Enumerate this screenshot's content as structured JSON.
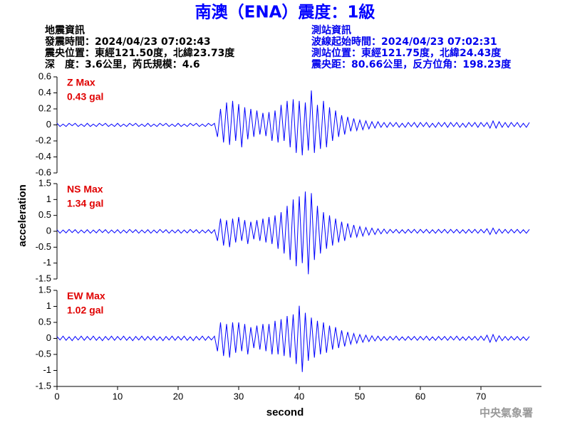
{
  "header": {
    "title": "南澳（ENA）震度：1級",
    "left": [
      "地震資訊",
      "發震時間：2024/04/23 07:02:43",
      "震央位置：東經121.50度，北緯23.73度",
      "深　度：3.6公里，芮氏規模：4.6"
    ],
    "right": [
      "測站資訊",
      "波線起始時間：2024/04/23 07:02:31",
      "測站位置：東經121.75度，北緯24.43度",
      "震央距：80.66公里，反方位角：198.23度"
    ]
  },
  "footer": "中央氣象署",
  "chart_data": {
    "type": "line",
    "xlabel": "second",
    "ylabel": "acceleration",
    "xlim": [
      0,
      80
    ],
    "xticks": [
      0,
      10,
      20,
      30,
      40,
      50,
      60,
      70
    ],
    "x": [
      0,
      0.5,
      1,
      1.5,
      2,
      2.5,
      3,
      3.5,
      4,
      4.5,
      5,
      5.5,
      6,
      6.5,
      7,
      7.5,
      8,
      8.5,
      9,
      9.5,
      10,
      10.5,
      11,
      11.5,
      12,
      12.5,
      13,
      13.5,
      14,
      14.5,
      15,
      15.5,
      16,
      16.5,
      17,
      17.5,
      18,
      18.5,
      19,
      19.5,
      20,
      20.5,
      21,
      21.5,
      22,
      22.5,
      23,
      23.5,
      24,
      24.5,
      25,
      25.5,
      26,
      26.5,
      27,
      27.5,
      28,
      28.5,
      29,
      29.5,
      30,
      30.5,
      31,
      31.5,
      32,
      32.5,
      33,
      33.5,
      34,
      34.5,
      35,
      35.5,
      36,
      36.5,
      37,
      37.5,
      38,
      38.5,
      39,
      39.5,
      40,
      40.5,
      41,
      41.5,
      42,
      42.5,
      43,
      43.5,
      44,
      44.5,
      45,
      45.5,
      46,
      46.5,
      47,
      47.5,
      48,
      48.5,
      49,
      49.5,
      50,
      50.5,
      51,
      51.5,
      52,
      52.5,
      53,
      53.5,
      54,
      54.5,
      55,
      55.5,
      56,
      56.5,
      57,
      57.5,
      58,
      58.5,
      59,
      59.5,
      60,
      60.5,
      61,
      61.5,
      62,
      62.5,
      63,
      63.5,
      64,
      64.5,
      65,
      65.5,
      66,
      66.5,
      67,
      67.5,
      68,
      68.5,
      69,
      69.5,
      70,
      70.5,
      71,
      71.5,
      72,
      72.5,
      73,
      73.5,
      74,
      74.5,
      75,
      75.5,
      76,
      76.5,
      77,
      77.5,
      78
    ],
    "panels": [
      {
        "label": "Z Max",
        "max_label": "0.43 gal",
        "color": "#0000ff",
        "ylim": [
          -0.6,
          0.6
        ],
        "yticks": [
          -0.6,
          -0.4,
          -0.2,
          0,
          0.2,
          0.4,
          0.6
        ],
        "values": [
          0.02,
          -0.02,
          0.01,
          -0.02,
          0.02,
          -0.01,
          0.02,
          -0.02,
          0.01,
          -0.02,
          0.02,
          -0.02,
          0.01,
          -0.02,
          0.02,
          -0.01,
          0.02,
          -0.02,
          0.01,
          -0.02,
          0.02,
          -0.02,
          0.01,
          -0.02,
          0.02,
          -0.01,
          0.02,
          -0.02,
          0.01,
          -0.02,
          0.02,
          -0.02,
          0.01,
          -0.02,
          0.02,
          -0.01,
          0.02,
          -0.02,
          0.01,
          -0.02,
          0.02,
          -0.02,
          0.01,
          -0.02,
          0.02,
          -0.01,
          0.02,
          -0.02,
          0.01,
          -0.02,
          0.02,
          -0.01,
          0.02,
          -0.15,
          0.2,
          -0.22,
          0.28,
          -0.25,
          0.3,
          -0.2,
          0.26,
          -0.28,
          0.22,
          -0.18,
          0.2,
          -0.15,
          0.18,
          -0.12,
          0.15,
          -0.14,
          0.16,
          -0.2,
          0.18,
          -0.22,
          0.25,
          -0.2,
          0.3,
          -0.28,
          0.32,
          -0.35,
          0.3,
          -0.38,
          0.28,
          -0.32,
          0.43,
          -0.35,
          0.25,
          -0.3,
          0.3,
          -0.28,
          0.22,
          -0.2,
          0.18,
          -0.15,
          0.12,
          -0.12,
          0.1,
          -0.08,
          0.08,
          -0.07,
          0.06,
          -0.06,
          0.05,
          -0.05,
          0.04,
          -0.04,
          0.04,
          -0.03,
          0.03,
          -0.03,
          0.03,
          -0.02,
          0.03,
          -0.03,
          0.02,
          -0.03,
          0.03,
          -0.02,
          0.03,
          -0.03,
          0.03,
          -0.02,
          0.03,
          -0.03,
          0.02,
          -0.03,
          0.03,
          -0.02,
          0.03,
          -0.03,
          0.03,
          -0.02,
          0.03,
          -0.03,
          0.02,
          -0.03,
          0.03,
          -0.02,
          0.03,
          -0.03,
          0.03,
          -0.02,
          0.03,
          -0.04,
          0.05,
          -0.04,
          0.04,
          -0.03,
          0.03,
          -0.03,
          0.03,
          -0.02,
          0.03,
          -0.03,
          0.02,
          -0.03,
          0.03
        ]
      },
      {
        "label": "NS Max",
        "max_label": "1.34 gal",
        "color": "#0000ff",
        "ylim": [
          -1.5,
          1.5
        ],
        "yticks": [
          -1.5,
          -1,
          -0.5,
          0,
          0.5,
          1,
          1.5
        ],
        "values": [
          0.05,
          -0.06,
          0.04,
          -0.05,
          0.06,
          -0.04,
          0.05,
          -0.06,
          0.04,
          -0.05,
          0.05,
          -0.06,
          0.04,
          -0.05,
          0.06,
          -0.04,
          0.05,
          -0.06,
          0.04,
          -0.05,
          0.05,
          -0.06,
          0.04,
          -0.05,
          0.06,
          -0.04,
          0.05,
          -0.06,
          0.04,
          -0.05,
          0.05,
          -0.06,
          0.04,
          -0.05,
          0.06,
          -0.04,
          0.05,
          -0.06,
          0.04,
          -0.05,
          0.05,
          -0.06,
          0.04,
          -0.05,
          0.06,
          -0.04,
          0.05,
          -0.06,
          0.04,
          -0.05,
          0.05,
          -0.06,
          0.05,
          -0.3,
          0.4,
          -0.45,
          0.35,
          -0.5,
          0.4,
          -0.35,
          0.45,
          -0.3,
          0.35,
          -0.4,
          0.3,
          -0.25,
          0.35,
          -0.3,
          0.4,
          -0.35,
          0.45,
          -0.4,
          0.5,
          -0.55,
          0.6,
          -0.7,
          0.8,
          -0.9,
          1.0,
          -1.1,
          1.1,
          -1.0,
          1.25,
          -1.35,
          1.2,
          -0.9,
          0.8,
          -0.7,
          0.6,
          -0.55,
          0.5,
          -0.45,
          0.4,
          -0.35,
          0.3,
          -0.3,
          0.25,
          -0.2,
          0.2,
          -0.18,
          0.15,
          -0.15,
          0.12,
          -0.12,
          0.1,
          -0.1,
          0.08,
          -0.08,
          0.07,
          -0.07,
          0.06,
          -0.05,
          0.06,
          -0.06,
          0.05,
          -0.06,
          0.06,
          -0.05,
          0.06,
          -0.06,
          0.06,
          -0.05,
          0.06,
          -0.06,
          0.05,
          -0.06,
          0.06,
          -0.05,
          0.06,
          -0.06,
          0.06,
          -0.05,
          0.06,
          -0.06,
          0.05,
          -0.06,
          0.06,
          -0.05,
          0.06,
          -0.06,
          0.06,
          -0.05,
          0.08,
          -0.1,
          0.1,
          -0.08,
          0.07,
          -0.06,
          0.06,
          -0.06,
          0.06,
          -0.05,
          0.06,
          -0.06,
          0.05,
          -0.06,
          0.06
        ]
      },
      {
        "label": "EW Max",
        "max_label": "1.02 gal",
        "color": "#0000ff",
        "ylim": [
          -1.5,
          1.5
        ],
        "yticks": [
          -1.5,
          -1,
          -0.5,
          0,
          0.5,
          1,
          1.5
        ],
        "values": [
          0.06,
          -0.05,
          0.07,
          -0.06,
          0.05,
          -0.07,
          0.06,
          -0.05,
          0.07,
          -0.06,
          0.06,
          -0.05,
          0.07,
          -0.06,
          0.05,
          -0.07,
          0.06,
          -0.05,
          0.07,
          -0.06,
          0.06,
          -0.05,
          0.07,
          -0.06,
          0.05,
          -0.07,
          0.06,
          -0.05,
          0.07,
          -0.06,
          0.06,
          -0.05,
          0.07,
          -0.06,
          0.05,
          -0.07,
          0.06,
          -0.05,
          0.07,
          -0.06,
          0.06,
          -0.05,
          0.07,
          -0.06,
          0.05,
          -0.07,
          0.06,
          -0.05,
          0.07,
          -0.06,
          0.06,
          -0.05,
          0.07,
          -0.4,
          0.5,
          -0.55,
          0.45,
          -0.6,
          0.5,
          -0.45,
          0.5,
          -0.4,
          0.45,
          -0.5,
          0.35,
          -0.3,
          0.4,
          -0.35,
          0.45,
          -0.4,
          0.45,
          -0.5,
          0.55,
          -0.5,
          0.6,
          -0.55,
          0.7,
          -0.6,
          0.75,
          -0.8,
          1.02,
          -1.05,
          0.8,
          -0.7,
          0.65,
          -0.6,
          0.55,
          -0.5,
          0.5,
          -0.45,
          0.4,
          -0.35,
          0.35,
          -0.3,
          0.25,
          -0.25,
          0.2,
          -0.18,
          0.15,
          -0.15,
          0.12,
          -0.12,
          0.1,
          -0.1,
          0.08,
          -0.08,
          0.07,
          -0.07,
          0.06,
          -0.06,
          0.06,
          -0.05,
          0.07,
          -0.06,
          0.05,
          -0.06,
          0.06,
          -0.05,
          0.06,
          -0.06,
          0.06,
          -0.05,
          0.07,
          -0.06,
          0.05,
          -0.06,
          0.06,
          -0.05,
          0.06,
          -0.06,
          0.06,
          -0.05,
          0.07,
          -0.06,
          0.05,
          -0.06,
          0.06,
          -0.05,
          0.06,
          -0.06,
          0.07,
          -0.06,
          0.1,
          -0.12,
          0.12,
          -0.1,
          0.08,
          -0.07,
          0.06,
          -0.06,
          0.06,
          -0.05,
          0.06,
          -0.06,
          0.05,
          -0.06,
          0.06
        ]
      }
    ]
  }
}
